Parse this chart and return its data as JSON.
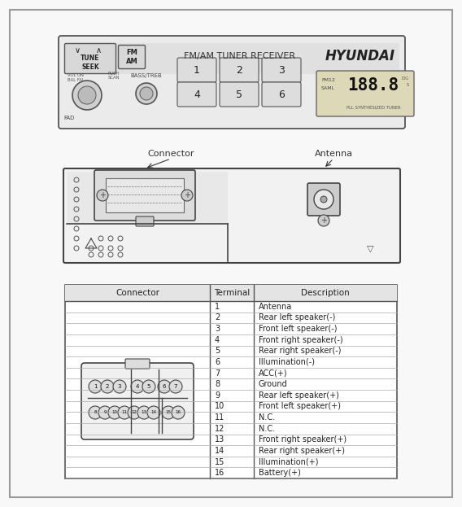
{
  "bg_color": "#f8f8f8",
  "radio_label": "FM/AM TUNER RECEIVER",
  "radio_brand": "HYUNDAI",
  "buttons_top": [
    "1",
    "2",
    "3"
  ],
  "buttons_bot": [
    "4",
    "5",
    "6"
  ],
  "display_text": "188.8",
  "display_sub1": "FM12",
  "display_sub2": "SAML",
  "display_sub3": "PLL SYNTHESIZED TUNER",
  "tune_seek": "TUNE\nSEEK",
  "fm_am": "FM\nAM",
  "bass_treb": "BASS/TREB",
  "vol_on": "VOL ON",
  "bal_fal": "BAL FAL",
  "push_scan": "PUSH\nSCAN",
  "fad": "FAD",
  "connector_label": "Connector",
  "antenna_label": "Antenna",
  "table_headers": [
    "Connector",
    "Terminal",
    "Description"
  ],
  "terminals": [
    1,
    2,
    3,
    4,
    5,
    6,
    7,
    8,
    9,
    10,
    11,
    12,
    13,
    14,
    15,
    16
  ],
  "descriptions": [
    "Antenna",
    "Rear left speaker(-)",
    "Front left speaker(-)",
    "Front right speaker(-)",
    "Rear right speaker(-)",
    "Illumination(-)",
    "ACC(+)",
    "Ground",
    "Rear left speaker(+)",
    "Front left speaker(+)",
    "N.C.",
    "N.C.",
    "Front right speaker(+)",
    "Rear right speaker(+)",
    "Illumination(+)",
    "Battery(+)"
  ]
}
